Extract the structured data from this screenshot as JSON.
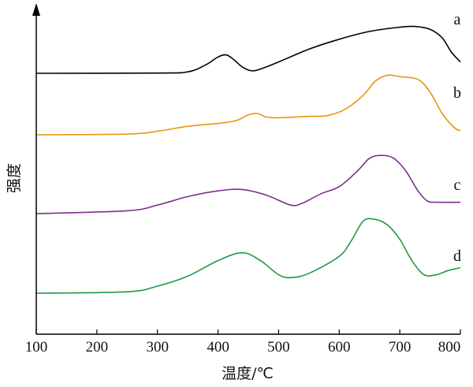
{
  "chart_data": {
    "type": "line",
    "xlabel": "温度/℃",
    "ylabel": "强度",
    "xlim": [
      100,
      800
    ],
    "x_ticks": [
      "100",
      "200",
      "300",
      "400",
      "500",
      "600",
      "700",
      "800"
    ],
    "y_ticks_shown": false,
    "grid": false,
    "legend": "inline labels at right end of each curve",
    "series": [
      {
        "name": "a",
        "color": "#000000",
        "points": [
          [
            100,
            0.0
          ],
          [
            300,
            0.02
          ],
          [
            350,
            0.1
          ],
          [
            380,
            0.6
          ],
          [
            400,
            1.15
          ],
          [
            413,
            1.3
          ],
          [
            425,
            1.0
          ],
          [
            440,
            0.45
          ],
          [
            455,
            0.18
          ],
          [
            470,
            0.3
          ],
          [
            500,
            0.8
          ],
          [
            550,
            1.7
          ],
          [
            600,
            2.4
          ],
          [
            650,
            2.95
          ],
          [
            700,
            3.25
          ],
          [
            725,
            3.3
          ],
          [
            750,
            3.1
          ],
          [
            770,
            2.5
          ],
          [
            785,
            1.5
          ],
          [
            800,
            0.8
          ]
        ]
      },
      {
        "name": "b",
        "color": "#E8960E",
        "points": [
          [
            100,
            0.0
          ],
          [
            250,
            0.05
          ],
          [
            300,
            0.25
          ],
          [
            350,
            0.6
          ],
          [
            400,
            0.8
          ],
          [
            430,
            1.0
          ],
          [
            450,
            1.4
          ],
          [
            465,
            1.5
          ],
          [
            480,
            1.25
          ],
          [
            500,
            1.2
          ],
          [
            550,
            1.3
          ],
          [
            580,
            1.35
          ],
          [
            610,
            1.8
          ],
          [
            640,
            2.8
          ],
          [
            660,
            3.8
          ],
          [
            680,
            4.2
          ],
          [
            700,
            4.1
          ],
          [
            730,
            3.9
          ],
          [
            750,
            3.0
          ],
          [
            770,
            1.5
          ],
          [
            790,
            0.5
          ],
          [
            800,
            0.3
          ]
        ]
      },
      {
        "name": "c",
        "color": "#7E2F8E",
        "points": [
          [
            100,
            0.0
          ],
          [
            250,
            0.2
          ],
          [
            300,
            0.6
          ],
          [
            350,
            1.2
          ],
          [
            400,
            1.6
          ],
          [
            440,
            1.7
          ],
          [
            480,
            1.3
          ],
          [
            520,
            0.6
          ],
          [
            540,
            0.75
          ],
          [
            570,
            1.4
          ],
          [
            600,
            1.9
          ],
          [
            630,
            3.0
          ],
          [
            650,
            3.9
          ],
          [
            670,
            4.1
          ],
          [
            690,
            3.9
          ],
          [
            710,
            3.0
          ],
          [
            730,
            1.6
          ],
          [
            745,
            0.9
          ],
          [
            760,
            0.8
          ],
          [
            800,
            0.8
          ]
        ]
      },
      {
        "name": "d",
        "color": "#1F9A46",
        "points": [
          [
            100,
            0.0
          ],
          [
            250,
            0.1
          ],
          [
            300,
            0.5
          ],
          [
            350,
            1.2
          ],
          [
            400,
            2.3
          ],
          [
            440,
            2.85
          ],
          [
            470,
            2.3
          ],
          [
            500,
            1.3
          ],
          [
            520,
            1.1
          ],
          [
            550,
            1.4
          ],
          [
            600,
            2.6
          ],
          [
            620,
            3.7
          ],
          [
            640,
            5.1
          ],
          [
            660,
            5.2
          ],
          [
            680,
            4.8
          ],
          [
            700,
            3.8
          ],
          [
            720,
            2.3
          ],
          [
            740,
            1.3
          ],
          [
            760,
            1.3
          ],
          [
            780,
            1.6
          ],
          [
            800,
            1.8
          ]
        ]
      }
    ]
  }
}
